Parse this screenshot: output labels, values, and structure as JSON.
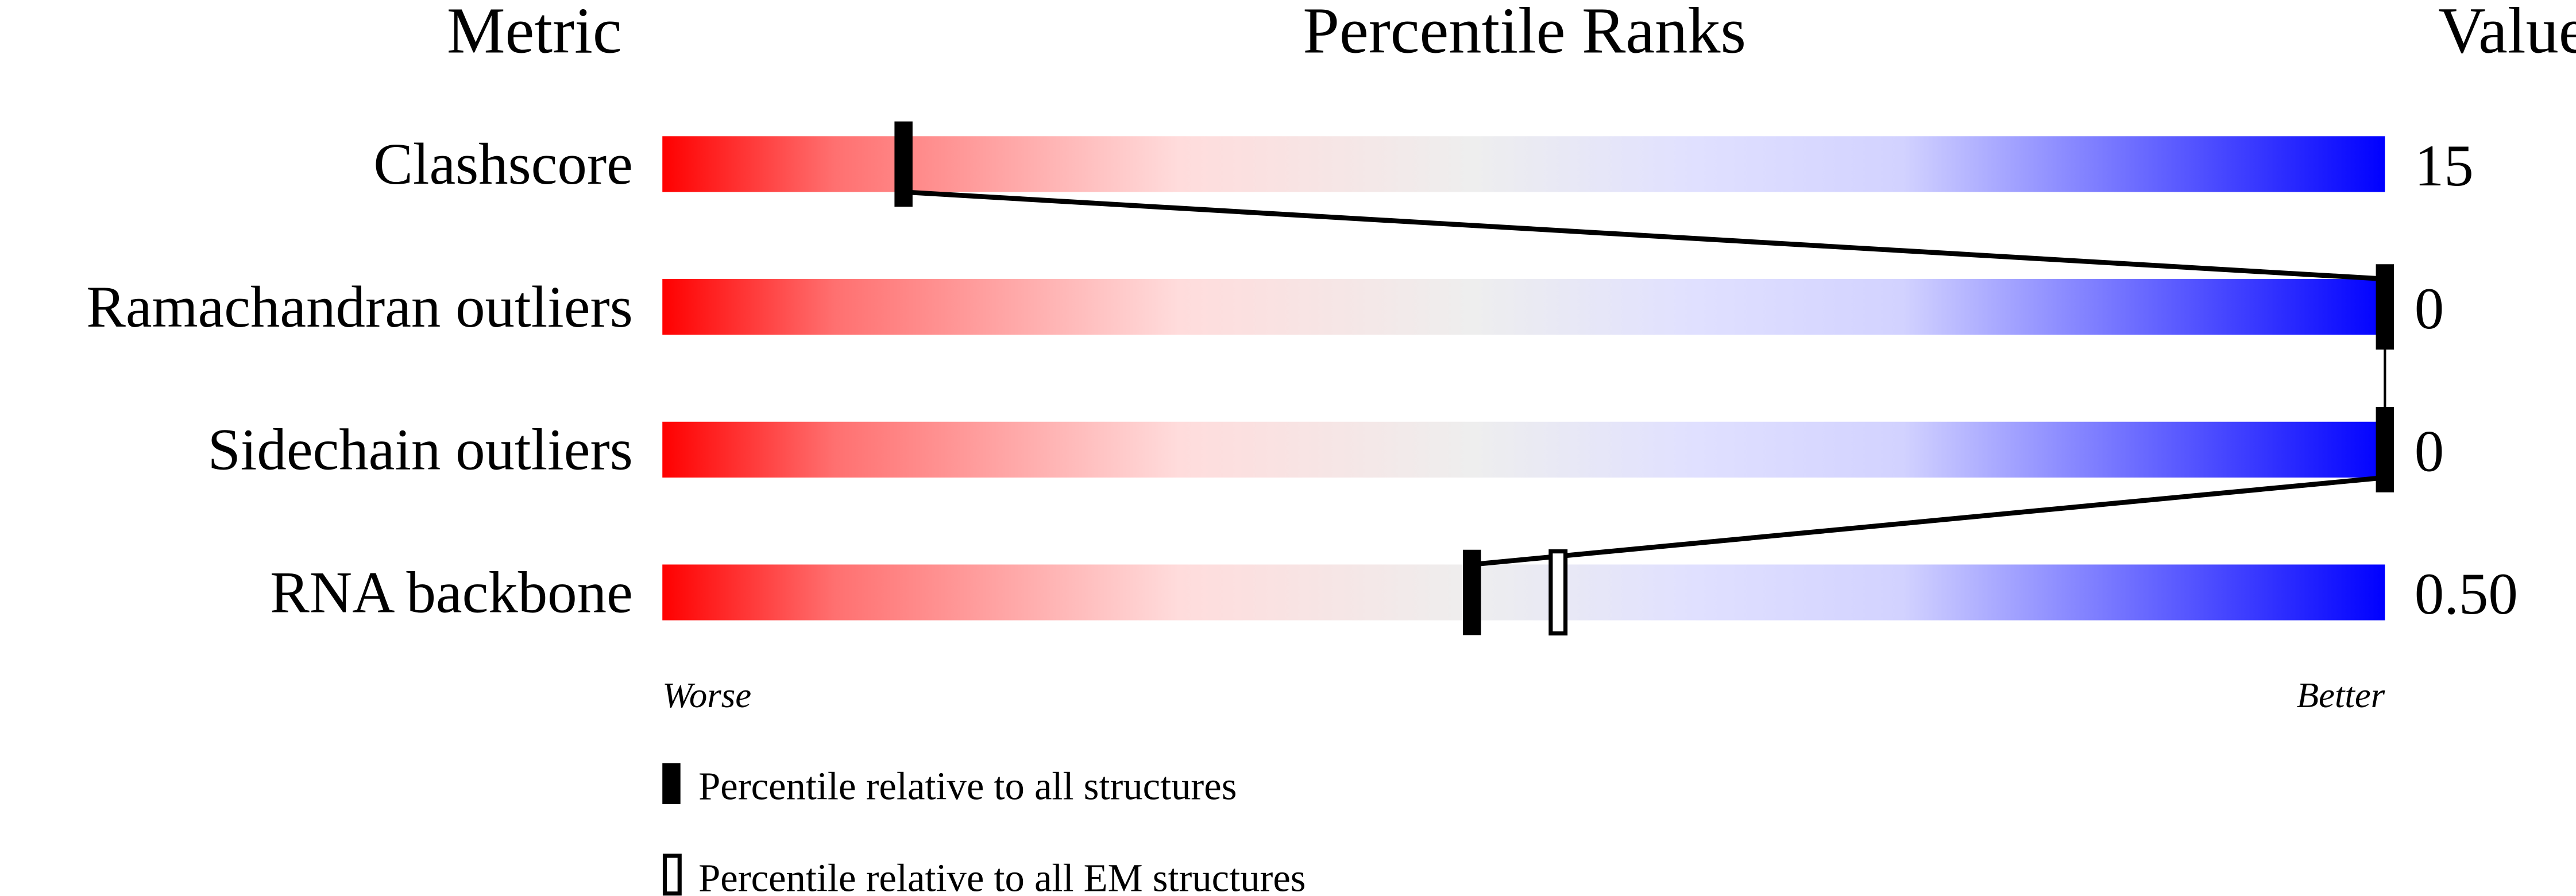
{
  "chart_data": {
    "type": "percentile-slider",
    "headers": {
      "metric": "Metric",
      "ranks": "Percentile Ranks",
      "value": "Value"
    },
    "axis": {
      "left_label": "Worse",
      "right_label": "Better",
      "range": [
        0,
        100
      ]
    },
    "gradient_colors": [
      "#ff0000",
      "#ff7777",
      "#ffdddd",
      "#eeeeee",
      "#e0e0ff",
      "#d0d0ff",
      "#0000ff"
    ],
    "metrics": [
      {
        "name": "Clashscore",
        "value": "15",
        "percentile_all": 14,
        "percentile_em": null
      },
      {
        "name": "Ramachandran outliers",
        "value": "0",
        "percentile_all": 100,
        "percentile_em": null
      },
      {
        "name": "Sidechain outliers",
        "value": "0",
        "percentile_all": 100,
        "percentile_em": null
      },
      {
        "name": "RNA backbone",
        "value": "0.50",
        "percentile_all": 47,
        "percentile_em": 52
      }
    ],
    "legend": [
      {
        "marker": "filled",
        "label": "Percentile relative to all structures"
      },
      {
        "marker": "open",
        "label": "Percentile relative to all EM structures"
      }
    ]
  }
}
